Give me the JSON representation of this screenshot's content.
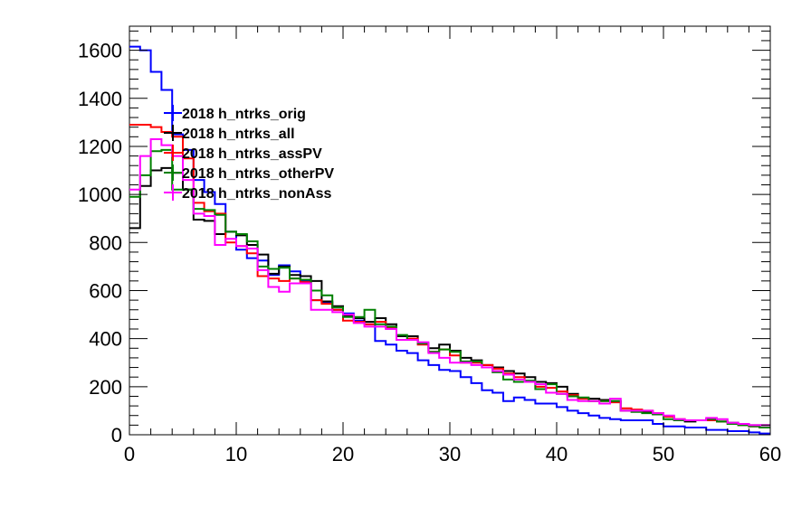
{
  "chart_data": {
    "type": "line",
    "style": "step-histogram",
    "title": "",
    "xlabel": "",
    "ylabel": "",
    "xlim": [
      0,
      60
    ],
    "ylim": [
      0,
      1700
    ],
    "x_ticks": [
      0,
      10,
      20,
      30,
      40,
      50,
      60
    ],
    "y_ticks": [
      0,
      200,
      400,
      600,
      800,
      1000,
      1200,
      1400,
      1600
    ],
    "grid": false,
    "legend_position": "top-left",
    "bin_edges_start": 0,
    "bin_width": 1,
    "series": [
      {
        "name": "2018 h_ntrks_orig",
        "color": "#0000ff",
        "values": [
          1615,
          1600,
          1510,
          1435,
          1250,
          1185,
          1060,
          1010,
          960,
          845,
          770,
          735,
          725,
          665,
          705,
          680,
          640,
          560,
          550,
          520,
          505,
          475,
          460,
          390,
          375,
          350,
          340,
          310,
          290,
          270,
          265,
          240,
          215,
          185,
          175,
          140,
          155,
          145,
          130,
          130,
          115,
          100,
          90,
          80,
          70,
          65,
          60,
          60,
          60,
          45,
          35,
          35,
          30,
          30,
          20,
          20,
          15,
          15,
          10,
          5
        ]
      },
      {
        "name": "2018 h_ntrks_all",
        "color": "#000000",
        "values": [
          860,
          1035,
          1100,
          1110,
          1090,
          1020,
          895,
          890,
          835,
          845,
          830,
          790,
          750,
          670,
          700,
          665,
          660,
          640,
          555,
          535,
          495,
          485,
          470,
          485,
          460,
          410,
          410,
          380,
          360,
          375,
          350,
          320,
          310,
          290,
          280,
          265,
          255,
          240,
          220,
          215,
          200,
          170,
          150,
          150,
          145,
          140,
          100,
          100,
          95,
          85,
          75,
          60,
          55,
          60,
          60,
          55,
          50,
          45,
          40,
          40
        ]
      },
      {
        "name": "2018 h_ntrks_assPV",
        "color": "#ff0000",
        "values": [
          1290,
          1290,
          1280,
          1260,
          1240,
          1150,
          965,
          930,
          920,
          800,
          785,
          755,
          660,
          650,
          640,
          650,
          635,
          560,
          545,
          520,
          475,
          470,
          460,
          470,
          445,
          395,
          400,
          375,
          345,
          355,
          330,
          300,
          300,
          290,
          275,
          255,
          240,
          220,
          200,
          195,
          180,
          165,
          150,
          140,
          140,
          135,
          110,
          105,
          100,
          90,
          75,
          65,
          60,
          60,
          60,
          55,
          45,
          40,
          35,
          30
        ]
      },
      {
        "name": "2018 h_ntrks_otherPV",
        "color": "#008000",
        "values": [
          990,
          1080,
          1180,
          1185,
          1020,
          1020,
          940,
          935,
          915,
          845,
          835,
          805,
          700,
          690,
          695,
          650,
          645,
          600,
          580,
          530,
          490,
          490,
          520,
          460,
          450,
          415,
          395,
          380,
          345,
          355,
          345,
          305,
          305,
          280,
          260,
          230,
          220,
          225,
          190,
          210,
          170,
          160,
          155,
          140,
          140,
          140,
          100,
          95,
          90,
          85,
          65,
          60,
          60,
          60,
          65,
          55,
          45,
          40,
          35,
          30
        ]
      },
      {
        "name": "2018 h_ntrks_nonAss",
        "color": "#ff00ff",
        "values": [
          1020,
          1160,
          1230,
          1205,
          1160,
          1060,
          920,
          910,
          790,
          815,
          785,
          775,
          685,
          615,
          595,
          630,
          630,
          520,
          520,
          510,
          500,
          465,
          450,
          450,
          440,
          395,
          395,
          385,
          340,
          320,
          300,
          300,
          290,
          280,
          265,
          250,
          230,
          220,
          210,
          175,
          170,
          145,
          140,
          140,
          130,
          150,
          100,
          100,
          100,
          90,
          80,
          65,
          60,
          60,
          70,
          65,
          50,
          45,
          40,
          40
        ]
      }
    ]
  }
}
